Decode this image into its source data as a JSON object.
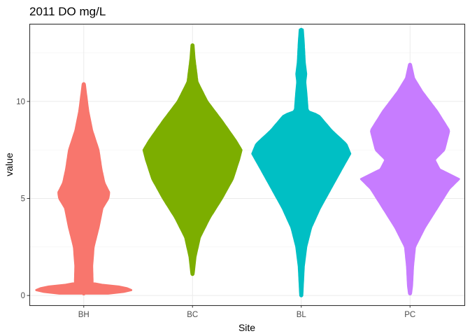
{
  "chart_data": {
    "type": "violin",
    "title": "2011 DO mg/L",
    "xlabel": "Site",
    "ylabel": "value",
    "ylim": [
      -0.5,
      14.0
    ],
    "y_ticks": [
      0,
      5,
      10
    ],
    "grid": true,
    "categories": [
      "BH",
      "BC",
      "BL",
      "PC"
    ],
    "colors": [
      "#F8766D",
      "#7CAE00",
      "#00BFC4",
      "#C77CFF"
    ],
    "series": [
      {
        "category": "BH",
        "min": 0.1,
        "max": 10.9,
        "profile": [
          [
            0.1,
            0.5
          ],
          [
            0.2,
            0.85
          ],
          [
            0.3,
            1.0
          ],
          [
            0.45,
            0.75
          ],
          [
            0.6,
            0.18
          ],
          [
            1.5,
            0.17
          ],
          [
            2.5,
            0.2
          ],
          [
            3.5,
            0.3
          ],
          [
            4.5,
            0.38
          ],
          [
            5.0,
            0.5
          ],
          [
            5.3,
            0.52
          ],
          [
            5.8,
            0.42
          ],
          [
            6.5,
            0.36
          ],
          [
            7.5,
            0.3
          ],
          [
            8.5,
            0.17
          ],
          [
            9.5,
            0.09
          ],
          [
            10.5,
            0.04
          ],
          [
            10.9,
            0.02
          ]
        ]
      },
      {
        "category": "BC",
        "min": 1.1,
        "max": 12.9,
        "profile": [
          [
            1.1,
            0.02
          ],
          [
            2.0,
            0.06
          ],
          [
            3.0,
            0.15
          ],
          [
            4.0,
            0.35
          ],
          [
            5.0,
            0.6
          ],
          [
            6.0,
            0.82
          ],
          [
            7.0,
            0.95
          ],
          [
            7.5,
            1.0
          ],
          [
            8.0,
            0.88
          ],
          [
            9.0,
            0.6
          ],
          [
            10.0,
            0.3
          ],
          [
            10.5,
            0.2
          ],
          [
            11.0,
            0.1
          ],
          [
            12.2,
            0.04
          ],
          [
            12.9,
            0.02
          ]
        ]
      },
      {
        "category": "BL",
        "min": 0.0,
        "max": 13.7,
        "profile": [
          [
            0.0,
            0.02
          ],
          [
            0.5,
            0.03
          ],
          [
            1.5,
            0.05
          ],
          [
            2.5,
            0.1
          ],
          [
            3.5,
            0.2
          ],
          [
            4.5,
            0.38
          ],
          [
            5.5,
            0.6
          ],
          [
            6.5,
            0.82
          ],
          [
            7.3,
            1.0
          ],
          [
            7.8,
            0.92
          ],
          [
            8.5,
            0.62
          ],
          [
            9.3,
            0.35
          ],
          [
            9.5,
            0.13
          ],
          [
            10.5,
            0.1
          ],
          [
            11.0,
            0.08
          ],
          [
            11.4,
            0.1
          ],
          [
            12.0,
            0.07
          ],
          [
            13.0,
            0.05
          ],
          [
            13.7,
            0.03
          ]
        ]
      },
      {
        "category": "PC",
        "min": 0.1,
        "max": 11.9,
        "profile": [
          [
            0.1,
            0.02
          ],
          [
            0.5,
            0.04
          ],
          [
            1.5,
            0.06
          ],
          [
            2.5,
            0.1
          ],
          [
            3.5,
            0.3
          ],
          [
            4.5,
            0.55
          ],
          [
            5.5,
            0.8
          ],
          [
            6.0,
            1.0
          ],
          [
            6.5,
            0.6
          ],
          [
            7.0,
            0.5
          ],
          [
            7.5,
            0.7
          ],
          [
            8.5,
            0.8
          ],
          [
            9.5,
            0.55
          ],
          [
            10.5,
            0.25
          ],
          [
            11.2,
            0.08
          ],
          [
            11.9,
            0.02
          ]
        ]
      }
    ]
  }
}
